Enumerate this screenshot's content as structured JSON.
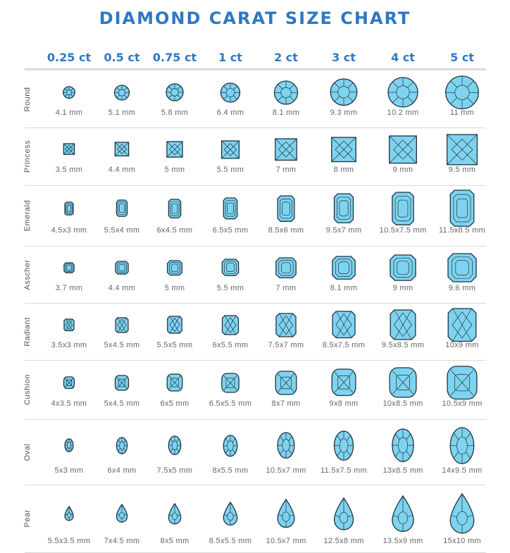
{
  "title": "DIAMOND CARAT SIZE CHART",
  "colors": {
    "accent": "#2f78c2",
    "gem": "#7fd3ef",
    "outline": "#1d3340"
  },
  "carats": [
    "0.25 ct",
    "0.5 ct",
    "0.75 ct",
    "1 ct",
    "2 ct",
    "3 ct",
    "4 ct",
    "5 ct"
  ],
  "rows": [
    {
      "shape": "Round",
      "sizes": [
        "4.1 mm",
        "5.1 mm",
        "5.8 mm",
        "6.4 mm",
        "8.1 mm",
        "9.3 mm",
        "10.2 mm",
        "11 mm"
      ]
    },
    {
      "shape": "Princess",
      "sizes": [
        "3.5 mm",
        "4.4 mm",
        "5 mm",
        "5.5 mm",
        "7 mm",
        "8 mm",
        "9 mm",
        "9.5 mm"
      ]
    },
    {
      "shape": "Emerald",
      "sizes": [
        "4.5x3 mm",
        "5.5x4 mm",
        "6x4.5 mm",
        "6.5x5 mm",
        "8.5x6 mm",
        "9.5x7 mm",
        "10.5x7.5 mm",
        "11.5x8.5 mm"
      ]
    },
    {
      "shape": "Asscher",
      "sizes": [
        "3.7 mm",
        "4.4 mm",
        "5 mm",
        "5.5 mm",
        "7 mm",
        "8.1 mm",
        "9 mm",
        "9.6 mm"
      ]
    },
    {
      "shape": "Radiant",
      "sizes": [
        "3.5x3 mm",
        "5x4.5 mm",
        "5.5x5 mm",
        "6x5.5 mm",
        "7.5x7 mm",
        "8.5x7.5 mm",
        "9.5x8.5 mm",
        "10x9 mm"
      ]
    },
    {
      "shape": "Cushion",
      "sizes": [
        "4x3.5 mm",
        "5x4.5 mm",
        "6x5 mm",
        "6.5x5.5 mm",
        "8x7 mm",
        "9x8 mm",
        "10x8.5 mm",
        "10.5x9 mm"
      ]
    },
    {
      "shape": "Oval",
      "sizes": [
        "5x3 mm",
        "6x4 mm",
        "7.5x5 mm",
        "8x5.5 mm",
        "10.5x7 mm",
        "11.5x7.5 mm",
        "13x8.5 mm",
        "14x9.5 mm"
      ]
    },
    {
      "shape": "Pear",
      "sizes": [
        "5.5x3.5 mm",
        "7x4.5 mm",
        "8x5 mm",
        "8.5x5.5 mm",
        "10.5x7 mm",
        "12.5x8 mm",
        "13.5x9 mm",
        "15x10 mm"
      ]
    }
  ]
}
